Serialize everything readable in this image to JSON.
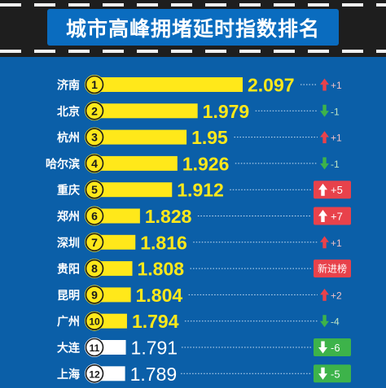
{
  "title": "城市高峰拥堵延时指数排名",
  "colors": {
    "background": "#0b5fa8",
    "title_box": "#0a6cbf",
    "top_band": "#1e1e1e",
    "bar_top10": "#ffe81a",
    "bar_other": "#ffffff",
    "value_top10": "#ffe81a",
    "value_other": "#ffffff",
    "change_up": "#e8424b",
    "change_down": "#3db34a",
    "badge_new": "#e8424b"
  },
  "chart_data": {
    "type": "bar",
    "orientation": "horizontal",
    "title": "城市高峰拥堵延时指数排名",
    "categories": [
      "济南",
      "北京",
      "杭州",
      "哈尔滨",
      "重庆",
      "郑州",
      "深圳",
      "贵阳",
      "昆明",
      "广州",
      "大连",
      "上海"
    ],
    "ranks": [
      "1",
      "2",
      "3",
      "4",
      "5",
      "6",
      "7",
      "8",
      "9",
      "10",
      "11",
      "12"
    ],
    "values": [
      2.097,
      1.979,
      1.95,
      1.926,
      1.912,
      1.828,
      1.816,
      1.808,
      1.804,
      1.794,
      1.791,
      1.789
    ],
    "value_labels": [
      "2.097",
      "1.979",
      "1.95",
      "1.926",
      "1.912",
      "1.828",
      "1.816",
      "1.808",
      "1.804",
      "1.794",
      "1.791",
      "1.789"
    ],
    "changes": [
      {
        "direction": "up",
        "text": "+1",
        "boxed": false
      },
      {
        "direction": "down",
        "text": "-1",
        "boxed": false
      },
      {
        "direction": "up",
        "text": "+1",
        "boxed": false
      },
      {
        "direction": "down",
        "text": "-1",
        "boxed": false
      },
      {
        "direction": "up",
        "text": "+5",
        "boxed": true
      },
      {
        "direction": "up",
        "text": "+7",
        "boxed": true
      },
      {
        "direction": "up",
        "text": "+1",
        "boxed": false
      },
      {
        "direction": "new",
        "text": "新进榜",
        "boxed": true
      },
      {
        "direction": "up",
        "text": "+2",
        "boxed": false
      },
      {
        "direction": "down",
        "text": "-4",
        "boxed": false
      },
      {
        "direction": "down",
        "text": "-6",
        "boxed": true
      },
      {
        "direction": "down",
        "text": "-5",
        "boxed": true
      }
    ],
    "xlabel": "",
    "ylabel": "",
    "grid": false,
    "legend": "none"
  }
}
